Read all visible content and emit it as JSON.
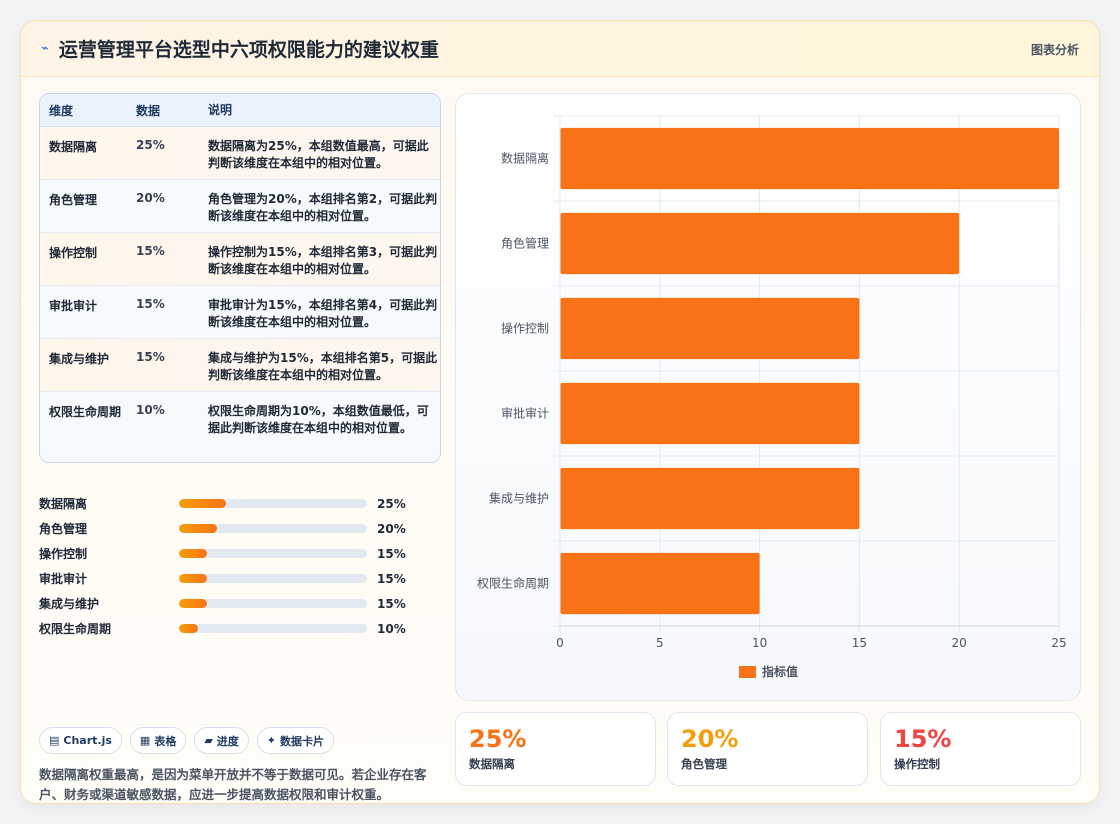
{
  "header": {
    "icon": "⌁",
    "title": "运营管理平台选型中六项权限能力的建议权重",
    "badge": "图表分析"
  },
  "table": {
    "headers": [
      "维度",
      "数据",
      "说明"
    ],
    "rows": [
      {
        "dim": "数据隔离",
        "val": "25%",
        "desc": "数据隔离为25%，本组数值最高，可据此判断该维度在本组中的相对位置。"
      },
      {
        "dim": "角色管理",
        "val": "20%",
        "desc": "角色管理为20%，本组排名第2，可据此判断该维度在本组中的相对位置。"
      },
      {
        "dim": "操作控制",
        "val": "15%",
        "desc": "操作控制为15%，本组排名第3，可据此判断该维度在本组中的相对位置。"
      },
      {
        "dim": "审批审计",
        "val": "15%",
        "desc": "审批审计为15%，本组排名第4，可据此判断该维度在本组中的相对位置。"
      },
      {
        "dim": "集成与维护",
        "val": "15%",
        "desc": "集成与维护为15%，本组排名第5，可据此判断该维度在本组中的相对位置。"
      },
      {
        "dim": "权限生命周期",
        "val": "10%",
        "desc": "权限生命周期为10%，本组数值最低，可据此判断该维度在本组中的相对位置。"
      }
    ]
  },
  "progress": [
    {
      "label": "数据隔离",
      "value": 25,
      "text": "25%"
    },
    {
      "label": "角色管理",
      "value": 20,
      "text": "20%"
    },
    {
      "label": "操作控制",
      "value": 15,
      "text": "15%"
    },
    {
      "label": "审批审计",
      "value": 15,
      "text": "15%"
    },
    {
      "label": "集成与维护",
      "value": 15,
      "text": "15%"
    },
    {
      "label": "权限生命周期",
      "value": 10,
      "text": "10%"
    }
  ],
  "chips": [
    {
      "icon": "▤",
      "label": "Chart.js"
    },
    {
      "icon": "▦",
      "label": "表格"
    },
    {
      "icon": "▰",
      "label": "进度"
    },
    {
      "icon": "✦",
      "label": "数据卡片"
    }
  ],
  "note": "数据隔离权重最高，是因为菜单开放并不等于数据可见。若企业存在客户、财务或渠道敏感数据，应进一步提高数据权限和审计权重。",
  "chart_data": {
    "type": "bar",
    "orientation": "horizontal",
    "categories": [
      "数据隔离",
      "角色管理",
      "操作控制",
      "审批审计",
      "集成与维护",
      "权限生命周期"
    ],
    "series": [
      {
        "name": "指标值",
        "values": [
          25,
          20,
          15,
          15,
          15,
          10
        ]
      }
    ],
    "xlim": [
      0,
      25
    ],
    "xticks": [
      0,
      5,
      10,
      15,
      20,
      25
    ],
    "grid": true,
    "legend": "bottom",
    "bar_color": "#f97316"
  },
  "kpis": [
    {
      "value": "25%",
      "label": "数据隔离",
      "color": "#f97316"
    },
    {
      "value": "20%",
      "label": "角色管理",
      "color": "#f59e0b"
    },
    {
      "value": "15%",
      "label": "操作控制",
      "color": "#ef4444"
    }
  ]
}
